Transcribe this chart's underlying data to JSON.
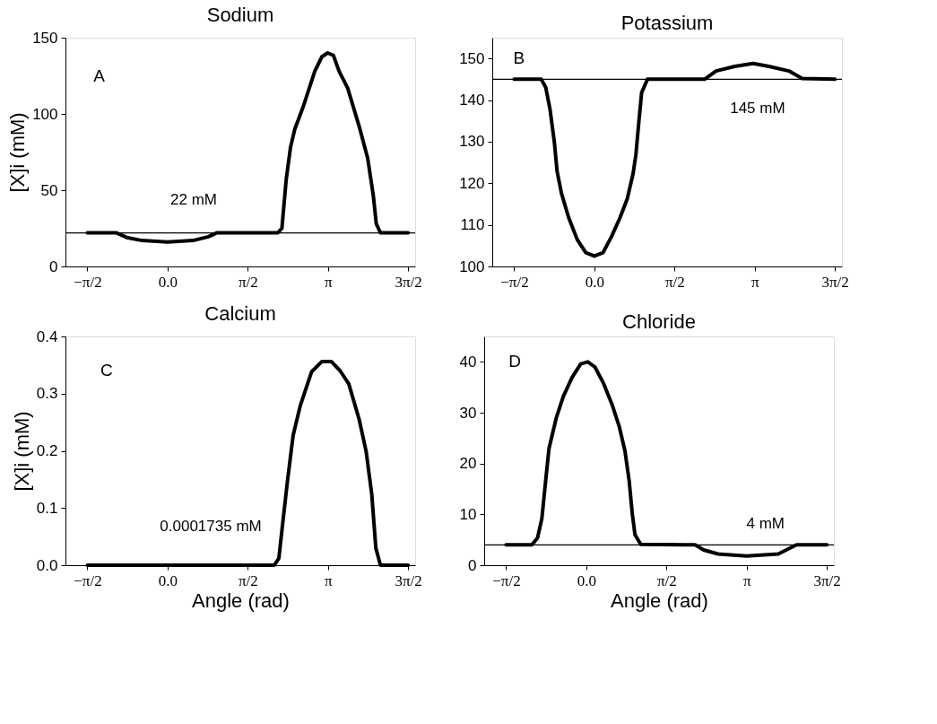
{
  "chart_data": [
    {
      "type": "line",
      "title": "Sodium",
      "ylabel": "[X]i (mM)",
      "series": [
        {
          "color": "#000000",
          "x": [
            -1.5708,
            -1.0,
            -0.8,
            -0.5,
            0.0,
            0.5,
            0.8,
            0.96,
            2.1,
            2.156,
            2.24,
            2.324,
            2.408,
            2.492,
            2.66,
            2.884,
            3.024,
            3.136,
            3.248,
            3.36,
            3.528,
            3.752,
            3.92,
            4.032,
            4.088,
            4.172,
            4.7124
          ],
          "values": [
            22,
            22,
            19,
            17,
            16,
            17,
            19.5,
            22,
            22,
            22,
            25,
            57,
            78,
            90,
            105,
            128,
            137.5,
            140,
            138.5,
            128,
            117,
            92,
            71,
            46,
            28,
            22,
            22
          ]
        }
      ],
      "xlim": [
        -2.0,
        4.85
      ],
      "ylim": [
        0,
        150
      ],
      "xticks": [
        {
          "value": -1.5708,
          "label": "−π/2"
        },
        {
          "value": 0,
          "label": "0.0"
        },
        {
          "value": 1.5708,
          "label": "π/2"
        },
        {
          "value": 3.1416,
          "label": "π"
        },
        {
          "value": 4.7124,
          "label": "3π/2"
        }
      ],
      "yticks": [
        0,
        50,
        100,
        150
      ],
      "ref_lines": [
        {
          "axis": "y",
          "value": 22,
          "color": "#000000"
        }
      ],
      "annotations": [
        "A",
        "22 mM"
      ],
      "grid": false
    },
    {
      "type": "line",
      "title": "Potassium",
      "series": [
        {
          "color": "#000000",
          "x": [
            -1.5708,
            -1.04,
            -0.954,
            -0.87,
            -0.785,
            -0.73,
            -0.645,
            -0.505,
            -0.337,
            -0.168,
            0.0,
            0.168,
            0.337,
            0.505,
            0.645,
            0.757,
            0.813,
            0.87,
            0.926,
            1.04,
            2.16,
            2.384,
            2.75,
            3.11,
            3.42,
            3.81,
            4.07,
            4.7124
          ],
          "values": [
            145,
            145,
            143.1,
            137.9,
            130,
            122.9,
            117.6,
            111.8,
            106.5,
            103.3,
            102.5,
            103.3,
            107.2,
            111.8,
            116.3,
            122.2,
            126.8,
            134.6,
            141.8,
            145,
            145,
            147,
            148.1,
            148.8,
            148.1,
            147,
            145.2,
            145
          ]
        }
      ],
      "xlim": [
        -2.0,
        4.85
      ],
      "ylim": [
        100,
        155
      ],
      "xticks": [
        {
          "value": -1.5708,
          "label": "−π/2"
        },
        {
          "value": 0,
          "label": "0.0"
        },
        {
          "value": 1.5708,
          "label": "π/2"
        },
        {
          "value": 3.1416,
          "label": "π"
        },
        {
          "value": 4.7124,
          "label": "3π/2"
        }
      ],
      "yticks": [
        100,
        110,
        120,
        130,
        140,
        150
      ],
      "ref_lines": [
        {
          "axis": "y",
          "value": 145,
          "color": "#000000"
        }
      ],
      "annotations": [
        "B",
        "145 mM"
      ],
      "grid": false
    },
    {
      "type": "line",
      "title": "Calcium",
      "ylabel": "[X]i (mM)",
      "xlabel": "Angle (rad)",
      "series": [
        {
          "color": "#000000",
          "x": [
            -1.5708,
            2.09,
            2.18,
            2.26,
            2.35,
            2.46,
            2.6,
            2.82,
            3.02,
            3.21,
            3.38,
            3.55,
            3.75,
            3.89,
            4.0,
            4.08,
            4.17,
            4.7124
          ],
          "values": [
            0,
            0,
            0.012,
            0.077,
            0.148,
            0.227,
            0.279,
            0.338,
            0.356,
            0.356,
            0.34,
            0.317,
            0.256,
            0.199,
            0.124,
            0.03,
            0,
            0
          ]
        }
      ],
      "xlim": [
        -2.0,
        4.85
      ],
      "ylim": [
        0,
        0.4
      ],
      "xticks": [
        {
          "value": -1.5708,
          "label": "−π/2"
        },
        {
          "value": 0,
          "label": "0.0"
        },
        {
          "value": 1.5708,
          "label": "π/2"
        },
        {
          "value": 3.1416,
          "label": "π"
        },
        {
          "value": 4.7124,
          "label": "3π/2"
        }
      ],
      "yticks": [
        {
          "value": 0,
          "label": "0.0"
        },
        0.1,
        0.2,
        0.3,
        0.4
      ],
      "annotations": [
        "C",
        "0.0001735 mM"
      ],
      "grid": false
    },
    {
      "type": "line",
      "title": "Chloride",
      "xlabel": "Angle (rad)",
      "series": [
        {
          "color": "#000000",
          "x": [
            -1.5708,
            -1.066,
            -0.954,
            -0.87,
            -0.785,
            -0.73,
            -0.59,
            -0.45,
            -0.28,
            -0.11,
            0.03,
            0.168,
            0.337,
            0.505,
            0.645,
            0.757,
            0.84,
            0.9,
            0.954,
            1.066,
            2.13,
            2.3,
            2.58,
            3.14,
            3.76,
            3.98,
            4.12,
            4.7124
          ],
          "values": [
            4,
            4,
            5.4,
            9.2,
            17.7,
            23,
            28.9,
            33.2,
            36.9,
            39.6,
            40,
            39,
            35.8,
            31.6,
            27.3,
            22.5,
            16.6,
            10.2,
            6,
            4.1,
            4,
            3.0,
            2.2,
            1.8,
            2.2,
            3.3,
            4,
            4
          ]
        }
      ],
      "xlim": [
        -2.0,
        4.85
      ],
      "ylim": [
        0,
        45
      ],
      "xticks": [
        {
          "value": -1.5708,
          "label": "−π/2"
        },
        {
          "value": 0,
          "label": "0.0"
        },
        {
          "value": 1.5708,
          "label": "π/2"
        },
        {
          "value": 3.1416,
          "label": "π"
        },
        {
          "value": 4.7124,
          "label": "3π/2"
        }
      ],
      "yticks": [
        0,
        10,
        20,
        30,
        40
      ],
      "ref_lines": [
        {
          "axis": "y",
          "value": 4,
          "color": "#000000"
        }
      ],
      "annotations": [
        "D",
        "4 mM"
      ],
      "grid": false
    }
  ]
}
